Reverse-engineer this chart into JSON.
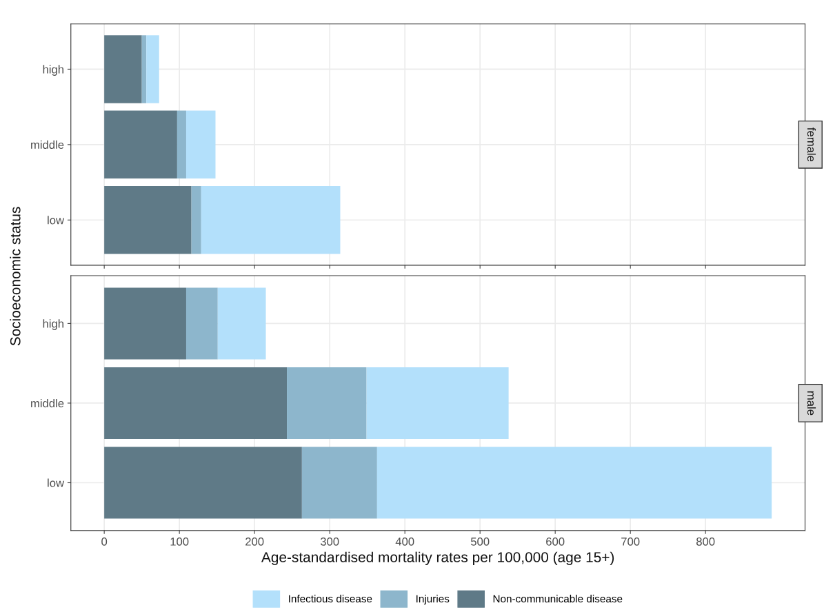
{
  "chart_data": [
    {
      "type": "bar",
      "orientation": "horizontal",
      "stacked": true,
      "title": "female",
      "ylabel": "Socioeconomic status",
      "categories": [
        "high",
        "middle",
        "low"
      ],
      "series": [
        {
          "color": "#5f7a87",
          "values": [
            50,
            97,
            116
          ]
        },
        {
          "color": "#8db6cc",
          "values": [
            6,
            12,
            13
          ]
        },
        {
          "color": "#b3e0fb",
          "values": [
            17,
            39,
            185
          ]
        }
      ],
      "xlim": [
        -44.4,
        932.4
      ],
      "xticks": [
        0,
        100,
        200,
        300,
        400,
        500,
        600,
        700,
        800
      ],
      "grid": true,
      "tick_labels": "y"
    },
    {
      "type": "bar",
      "orientation": "horizontal",
      "stacked": true,
      "title": "male",
      "xlabel": "Age-standardised mortality rates per 100,000 (age 15+)",
      "categories": [
        "high",
        "middle",
        "low"
      ],
      "series": [
        {
          "name": "Non-communicable disease",
          "color": "#5f7a87",
          "values": [
            109,
            243,
            263
          ]
        },
        {
          "name": "Injuries",
          "color": "#8db6cc",
          "values": [
            42,
            106,
            100
          ]
        },
        {
          "name": "Infectious disease",
          "color": "#b3e0fb",
          "values": [
            64,
            189,
            525
          ]
        }
      ],
      "xlim": [
        -44.4,
        932.4
      ],
      "xticks": [
        0,
        100,
        200,
        300,
        400,
        500,
        600,
        700,
        800
      ],
      "grid": true,
      "legend": "bottom"
    }
  ]
}
